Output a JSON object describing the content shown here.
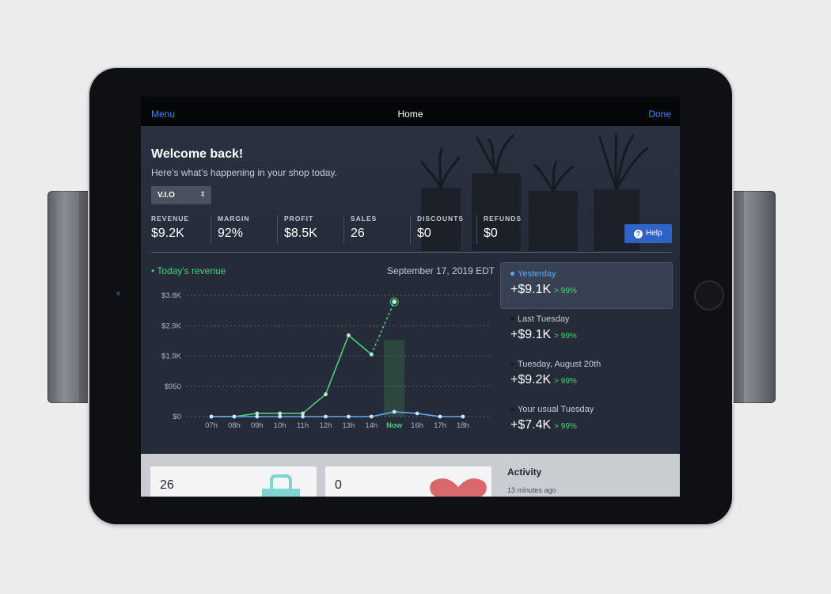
{
  "navbar": {
    "menu_label": "Menu",
    "title": "Home",
    "done_label": "Done"
  },
  "header": {
    "welcome": "Welcome back!",
    "subtitle": "Here’s what’s happening in your shop today.",
    "store_select": "V.I.O",
    "help_label": "Help"
  },
  "metrics": [
    {
      "label": "REVENUE",
      "value": "$9.2K"
    },
    {
      "label": "MARGIN",
      "value": "92%"
    },
    {
      "label": "PROFIT",
      "value": "$8.5K"
    },
    {
      "label": "SALES",
      "value": "26"
    },
    {
      "label": "DISCOUNTS",
      "value": "$0"
    },
    {
      "label": "REFUNDS",
      "value": "$0"
    }
  ],
  "chart_header": {
    "title": "• Today's revenue",
    "date": "September 17, 2019 EDT"
  },
  "chart_data": {
    "type": "line",
    "categories": [
      "07h",
      "08h",
      "09h",
      "10h",
      "11h",
      "12h",
      "13h",
      "14h",
      "Now",
      "16h",
      "17h",
      "18h"
    ],
    "y_ticks": [
      "$0",
      "$950",
      "$1.9K",
      "$2.9K",
      "$3.8K"
    ],
    "ylim": [
      0,
      3800
    ],
    "grid": true,
    "current_index": 8,
    "series": [
      {
        "values": [
          0,
          0,
          100,
          100,
          100,
          700,
          2550,
          1950,
          3600,
          null,
          null,
          null
        ],
        "color": "#4cd17a",
        "projected_from_index": 7
      },
      {
        "values": [
          0,
          0,
          0,
          0,
          0,
          0,
          0,
          0,
          150,
          100,
          0,
          0
        ],
        "color": "#5ea9f5"
      }
    ]
  },
  "comparisons": [
    {
      "label": "Yesterday",
      "value": "+$9.1K",
      "change": "> 99%",
      "active": true
    },
    {
      "label": "Last Tuesday",
      "value": "+$9.1K",
      "change": "> 99%",
      "active": false
    },
    {
      "label": "Tuesday, August 20th",
      "value": "+$9.2K",
      "change": "> 99%",
      "active": false
    },
    {
      "label": "Your usual Tuesday",
      "value": "+$7.4K",
      "change": "> 99%",
      "active": false
    }
  ],
  "cards": [
    {
      "value": "26",
      "icon": "shopping-bag-icon"
    },
    {
      "value": "0",
      "icon": "heart-icon"
    }
  ],
  "activity": {
    "title": "Activity",
    "time": "13 minutes ago"
  },
  "colors": {
    "accent_blue": "#4c7ef0",
    "revenue_green": "#4cd17a",
    "comparison_blue": "#5ea9f5",
    "help_button": "#2f63c8"
  }
}
